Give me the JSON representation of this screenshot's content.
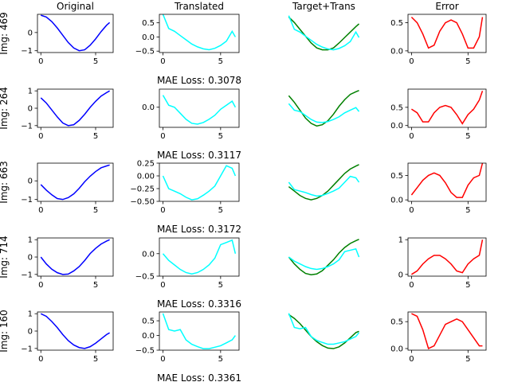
{
  "chart_data": [
    {
      "type": "line",
      "title": "Original",
      "ylabel": "Img: 469",
      "x": [
        0,
        0.5,
        1,
        1.5,
        2,
        2.5,
        3,
        3.5,
        4,
        4.5,
        5,
        5.5,
        6,
        6.28
      ],
      "series": [
        {
          "color": "#0000ff",
          "values": [
            0.95,
            0.85,
            0.6,
            0.25,
            -0.15,
            -0.55,
            -0.85,
            -1.0,
            -0.95,
            -0.7,
            -0.35,
            0.05,
            0.4,
            0.55
          ]
        }
      ],
      "xlim": [
        -0.31,
        6.6
      ],
      "ylim": [
        -1.1,
        1.0
      ],
      "xticks": [
        0,
        5
      ],
      "yticks": [
        {
          "value": -1,
          "label": "−1"
        },
        0
      ]
    },
    {
      "type": "line",
      "title": "Translated",
      "xlabel": "MAE Loss: 0.3078",
      "x": [
        0,
        0.5,
        1,
        1.5,
        2,
        2.5,
        3,
        3.5,
        4,
        4.5,
        5,
        5.5,
        6,
        6.28
      ],
      "series": [
        {
          "color": "#00ffff",
          "values": [
            0.8,
            0.3,
            0.2,
            0.05,
            -0.1,
            -0.25,
            -0.35,
            -0.42,
            -0.45,
            -0.4,
            -0.3,
            -0.15,
            0.2,
            0.0
          ]
        }
      ],
      "xlim": [
        -0.31,
        6.6
      ],
      "ylim": [
        -0.55,
        0.8
      ],
      "xticks": [
        0,
        5
      ],
      "yticks": [
        {
          "value": -0.5,
          "label": "−0.5"
        },
        {
          "value": 0,
          "label": "0.0"
        },
        0.5
      ]
    },
    {
      "type": "line",
      "title": "Target+Trans",
      "axis": false,
      "x": [
        0,
        0.5,
        1,
        1.5,
        2,
        2.5,
        3,
        3.5,
        4,
        4.5,
        5,
        5.5,
        6,
        6.28
      ],
      "series": [
        {
          "color": "#008000",
          "values": [
            0.75,
            0.55,
            0.3,
            0.05,
            -0.2,
            -0.38,
            -0.45,
            -0.45,
            -0.38,
            -0.2,
            0.0,
            0.2,
            0.4,
            0.5
          ]
        },
        {
          "color": "#00ffff",
          "values": [
            0.8,
            0.3,
            0.2,
            0.05,
            -0.1,
            -0.25,
            -0.35,
            -0.42,
            -0.45,
            -0.4,
            -0.3,
            -0.15,
            0.2,
            0.0
          ]
        }
      ],
      "xlim": [
        -0.31,
        6.6
      ],
      "ylim": [
        -0.55,
        0.85
      ]
    },
    {
      "type": "line",
      "title": "Error",
      "x": [
        0,
        0.5,
        1,
        1.5,
        2,
        2.5,
        3,
        3.5,
        4,
        4.5,
        5,
        5.5,
        6,
        6.28
      ],
      "series": [
        {
          "color": "#ff0000",
          "values": [
            0.6,
            0.5,
            0.3,
            0.05,
            0.1,
            0.35,
            0.5,
            0.55,
            0.5,
            0.3,
            0.05,
            0.05,
            0.25,
            0.6
          ]
        }
      ],
      "xlim": [
        -0.31,
        6.6
      ],
      "ylim": [
        -0.03,
        0.65
      ],
      "xticks": [
        0,
        5
      ],
      "yticks": [
        {
          "value": 0,
          "label": "0.0"
        },
        0.5
      ]
    },
    {
      "type": "line",
      "ylabel": "Img: 264",
      "x": [
        0,
        0.5,
        1,
        1.5,
        2,
        2.5,
        3,
        3.5,
        4,
        4.5,
        5,
        5.5,
        6,
        6.28
      ],
      "series": [
        {
          "color": "#0000ff",
          "values": [
            0.6,
            0.3,
            -0.1,
            -0.5,
            -0.85,
            -1.0,
            -0.95,
            -0.7,
            -0.35,
            0.05,
            0.4,
            0.7,
            0.9,
            1.0
          ]
        }
      ],
      "xlim": [
        -0.31,
        6.6
      ],
      "ylim": [
        -1.1,
        1.1
      ],
      "xticks": [
        0,
        5
      ],
      "yticks": [
        {
          "value": -1,
          "label": "−1"
        },
        0,
        1
      ]
    },
    {
      "type": "line",
      "xlabel": "MAE Loss: 0.3117",
      "x": [
        0,
        0.5,
        1,
        1.5,
        2,
        2.5,
        3,
        3.5,
        4,
        4.5,
        5,
        5.5,
        6,
        6.28
      ],
      "series": [
        {
          "color": "#00ffff",
          "values": [
            0.3,
            0.05,
            0.0,
            -0.15,
            -0.3,
            -0.4,
            -0.42,
            -0.38,
            -0.3,
            -0.2,
            -0.05,
            0.05,
            0.15,
            0.0
          ]
        }
      ],
      "xlim": [
        -0.31,
        6.6
      ],
      "ylim": [
        -0.5,
        0.45
      ],
      "xticks": [
        0,
        5
      ],
      "yticks": [
        {
          "value": 0,
          "label": "0.0"
        }
      ]
    },
    {
      "type": "line",
      "axis": false,
      "x": [
        0,
        0.5,
        1,
        1.5,
        2,
        2.5,
        3,
        3.5,
        4,
        4.5,
        5,
        5.5,
        6,
        6.28
      ],
      "series": [
        {
          "color": "#008000",
          "values": [
            0.6,
            0.35,
            0.05,
            -0.25,
            -0.45,
            -0.55,
            -0.5,
            -0.35,
            -0.1,
            0.2,
            0.45,
            0.65,
            0.75,
            0.8
          ]
        },
        {
          "color": "#00ffff",
          "values": [
            0.3,
            0.05,
            0.0,
            -0.15,
            -0.3,
            -0.4,
            -0.42,
            -0.38,
            -0.3,
            -0.2,
            -0.05,
            0.05,
            0.15,
            0.0
          ]
        }
      ],
      "xlim": [
        -0.31,
        6.6
      ],
      "ylim": [
        -0.6,
        0.85
      ]
    },
    {
      "type": "line",
      "x": [
        0,
        0.5,
        1,
        1.5,
        2,
        2.5,
        3,
        3.5,
        4,
        4.5,
        5,
        5.5,
        6,
        6.28
      ],
      "series": [
        {
          "color": "#ff0000",
          "values": [
            0.45,
            0.35,
            0.1,
            0.1,
            0.35,
            0.5,
            0.55,
            0.5,
            0.3,
            0.05,
            0.3,
            0.45,
            0.7,
            0.95
          ]
        }
      ],
      "xlim": [
        -0.31,
        6.6
      ],
      "ylim": [
        -0.05,
        1.0
      ],
      "xticks": [
        0,
        5
      ],
      "yticks": [
        {
          "value": 0,
          "label": "0.0"
        },
        0.5
      ]
    },
    {
      "type": "line",
      "ylabel": "Img: 663",
      "x": [
        0,
        0.5,
        1,
        1.5,
        2,
        2.5,
        3,
        3.5,
        4,
        4.5,
        5,
        5.5,
        6,
        6.28
      ],
      "series": [
        {
          "color": "#0000ff",
          "values": [
            -0.2,
            -0.5,
            -0.75,
            -0.95,
            -1.0,
            -0.9,
            -0.7,
            -0.4,
            -0.05,
            0.25,
            0.5,
            0.7,
            0.8,
            0.85
          ]
        }
      ],
      "xlim": [
        -0.31,
        6.6
      ],
      "ylim": [
        -1.1,
        0.95
      ],
      "xticks": [
        0,
        5
      ],
      "yticks": [
        {
          "value": -1,
          "label": "−1"
        },
        0
      ]
    },
    {
      "type": "line",
      "xlabel": "MAE Loss: 0.3172",
      "x": [
        0,
        0.5,
        1,
        1.5,
        2,
        2.5,
        3,
        3.5,
        4,
        4.5,
        5,
        5.5,
        6,
        6.28
      ],
      "series": [
        {
          "color": "#00ffff",
          "values": [
            0.0,
            -0.25,
            -0.3,
            -0.35,
            -0.42,
            -0.47,
            -0.45,
            -0.38,
            -0.3,
            -0.2,
            0.0,
            0.2,
            0.15,
            0.0
          ]
        }
      ],
      "xlim": [
        -0.31,
        6.6
      ],
      "ylim": [
        -0.5,
        0.25
      ],
      "xticks": [
        0,
        5
      ],
      "yticks": [
        {
          "value": -0.5,
          "label": "−0.50"
        },
        {
          "value": -0.25,
          "label": "−0.25"
        },
        {
          "value": 0,
          "label": "0.00"
        },
        0.25
      ]
    },
    {
      "type": "line",
      "axis": false,
      "x": [
        0,
        0.5,
        1,
        1.5,
        2,
        2.5,
        3,
        3.5,
        4,
        4.5,
        5,
        5.5,
        6,
        6.28
      ],
      "series": [
        {
          "color": "#008000",
          "values": [
            -0.15,
            -0.3,
            -0.45,
            -0.55,
            -0.6,
            -0.55,
            -0.45,
            -0.3,
            -0.1,
            0.1,
            0.3,
            0.45,
            0.55,
            0.6
          ]
        },
        {
          "color": "#00ffff",
          "values": [
            0.0,
            -0.25,
            -0.3,
            -0.35,
            -0.42,
            -0.47,
            -0.45,
            -0.38,
            -0.3,
            -0.2,
            0.0,
            0.2,
            0.15,
            0.0
          ]
        }
      ],
      "xlim": [
        -0.31,
        6.6
      ],
      "ylim": [
        -0.65,
        0.65
      ]
    },
    {
      "type": "line",
      "x": [
        0,
        0.5,
        1,
        1.5,
        2,
        2.5,
        3,
        3.5,
        4,
        4.5,
        5,
        5.5,
        6,
        6.28
      ],
      "series": [
        {
          "color": "#ff0000",
          "values": [
            0.1,
            0.25,
            0.4,
            0.5,
            0.55,
            0.5,
            0.35,
            0.15,
            0.05,
            0.05,
            0.3,
            0.45,
            0.5,
            0.75
          ]
        }
      ],
      "xlim": [
        -0.31,
        6.6
      ],
      "ylim": [
        -0.03,
        0.75
      ],
      "xticks": [
        0,
        5
      ],
      "yticks": [
        {
          "value": 0,
          "label": "0.0"
        },
        0.5
      ]
    },
    {
      "type": "line",
      "ylabel": "Img: 714",
      "x": [
        0,
        0.5,
        1,
        1.5,
        2,
        2.5,
        3,
        3.5,
        4,
        4.5,
        5,
        5.5,
        6,
        6.28
      ],
      "series": [
        {
          "color": "#0000ff",
          "values": [
            0.0,
            -0.4,
            -0.7,
            -0.9,
            -1.0,
            -0.98,
            -0.8,
            -0.55,
            -0.2,
            0.2,
            0.5,
            0.75,
            0.92,
            1.0
          ]
        }
      ],
      "xlim": [
        -0.31,
        6.6
      ],
      "ylim": [
        -1.1,
        1.1
      ],
      "xticks": [
        0,
        5
      ],
      "yticks": [
        {
          "value": -1,
          "label": "−1"
        },
        0,
        1
      ]
    },
    {
      "type": "line",
      "xlabel": "MAE Loss: 0.3316",
      "x": [
        0,
        0.5,
        1,
        1.5,
        2,
        2.5,
        3,
        3.5,
        4,
        4.5,
        5,
        5.5,
        6,
        6.28
      ],
      "series": [
        {
          "color": "#00ffff",
          "values": [
            0.0,
            -0.15,
            -0.25,
            -0.35,
            -0.42,
            -0.45,
            -0.42,
            -0.35,
            -0.25,
            -0.1,
            0.2,
            0.25,
            0.3,
            0.0
          ]
        }
      ],
      "xlim": [
        -0.31,
        6.6
      ],
      "ylim": [
        -0.5,
        0.35
      ],
      "xticks": [
        0,
        5
      ],
      "yticks": [
        {
          "value": -0.5,
          "label": "−0.5"
        },
        {
          "value": 0,
          "label": "0.0"
        }
      ]
    },
    {
      "type": "line",
      "axis": false,
      "x": [
        0,
        0.5,
        1,
        1.5,
        2,
        2.5,
        3,
        3.5,
        4,
        4.5,
        5,
        5.5,
        6,
        6.28
      ],
      "series": [
        {
          "color": "#008000",
          "values": [
            0.0,
            -0.25,
            -0.45,
            -0.6,
            -0.65,
            -0.62,
            -0.5,
            -0.3,
            -0.1,
            0.15,
            0.35,
            0.5,
            0.6,
            0.65
          ]
        },
        {
          "color": "#00ffff",
          "values": [
            0.0,
            -0.15,
            -0.25,
            -0.35,
            -0.42,
            -0.45,
            -0.42,
            -0.35,
            -0.25,
            -0.1,
            0.2,
            0.25,
            0.3,
            0.0
          ]
        }
      ],
      "xlim": [
        -0.31,
        6.6
      ],
      "ylim": [
        -0.7,
        0.7
      ]
    },
    {
      "type": "line",
      "x": [
        0,
        0.5,
        1,
        1.5,
        2,
        2.5,
        3,
        3.5,
        4,
        4.5,
        5,
        5.5,
        6,
        6.28
      ],
      "series": [
        {
          "color": "#ff0000",
          "values": [
            0.0,
            0.1,
            0.3,
            0.45,
            0.55,
            0.55,
            0.45,
            0.3,
            0.1,
            0.05,
            0.3,
            0.45,
            0.55,
            1.0
          ]
        }
      ],
      "xlim": [
        -0.31,
        6.6
      ],
      "ylim": [
        -0.05,
        1.05
      ],
      "xticks": [
        0,
        5
      ],
      "yticks": [
        0,
        1
      ]
    },
    {
      "type": "line",
      "ylabel": "Img: 160",
      "x": [
        0,
        0.5,
        1,
        1.5,
        2,
        2.5,
        3,
        3.5,
        4,
        4.5,
        5,
        5.5,
        6,
        6.28
      ],
      "series": [
        {
          "color": "#0000ff",
          "values": [
            1.0,
            0.85,
            0.55,
            0.2,
            -0.2,
            -0.55,
            -0.8,
            -0.95,
            -1.0,
            -0.9,
            -0.7,
            -0.45,
            -0.2,
            -0.1
          ]
        }
      ],
      "xlim": [
        -0.31,
        6.6
      ],
      "ylim": [
        -1.1,
        1.1
      ],
      "xticks": [
        0,
        5
      ],
      "yticks": [
        {
          "value": -1,
          "label": "−1"
        },
        0,
        1
      ]
    },
    {
      "type": "line",
      "xlabel": "MAE Loss: 0.3361",
      "x": [
        0,
        0.5,
        1,
        1.5,
        2,
        2.5,
        3,
        3.5,
        4,
        4.5,
        5,
        5.5,
        6,
        6.28
      ],
      "series": [
        {
          "color": "#00ffff",
          "values": [
            0.75,
            0.2,
            0.15,
            0.2,
            -0.15,
            -0.3,
            -0.38,
            -0.45,
            -0.45,
            -0.4,
            -0.35,
            -0.25,
            -0.15,
            0.0
          ]
        }
      ],
      "xlim": [
        -0.31,
        6.6
      ],
      "ylim": [
        -0.5,
        0.8
      ],
      "xticks": [
        0,
        5
      ],
      "yticks": [
        {
          "value": -0.5,
          "label": "−0.5"
        },
        {
          "value": 0,
          "label": "0.0"
        },
        0.5
      ]
    },
    {
      "type": "line",
      "axis": false,
      "x": [
        0,
        0.5,
        1,
        1.5,
        2,
        2.5,
        3,
        3.5,
        4,
        4.5,
        5,
        5.5,
        6,
        6.28
      ],
      "series": [
        {
          "color": "#008000",
          "values": [
            0.7,
            0.55,
            0.35,
            0.1,
            -0.15,
            -0.35,
            -0.5,
            -0.6,
            -0.62,
            -0.55,
            -0.4,
            -0.2,
            0.0,
            0.05
          ]
        },
        {
          "color": "#00ffff",
          "values": [
            0.75,
            0.2,
            0.15,
            0.2,
            -0.15,
            -0.3,
            -0.38,
            -0.45,
            -0.45,
            -0.4,
            -0.35,
            -0.25,
            -0.15,
            0.0
          ]
        }
      ],
      "xlim": [
        -0.31,
        6.6
      ],
      "ylim": [
        -0.68,
        0.8
      ]
    },
    {
      "type": "line",
      "x": [
        0,
        0.5,
        1,
        1.5,
        2,
        2.5,
        3,
        3.5,
        4,
        4.5,
        5,
        5.5,
        6,
        6.28
      ],
      "series": [
        {
          "color": "#ff0000",
          "values": [
            0.65,
            0.6,
            0.35,
            0.0,
            0.05,
            0.25,
            0.45,
            0.5,
            0.55,
            0.5,
            0.35,
            0.2,
            0.05,
            0.05
          ]
        }
      ],
      "xlim": [
        -0.31,
        6.6
      ],
      "ylim": [
        -0.03,
        0.68
      ],
      "xticks": [
        0,
        5
      ],
      "yticks": [
        {
          "value": 0,
          "label": "0.0"
        },
        0.5
      ]
    }
  ]
}
